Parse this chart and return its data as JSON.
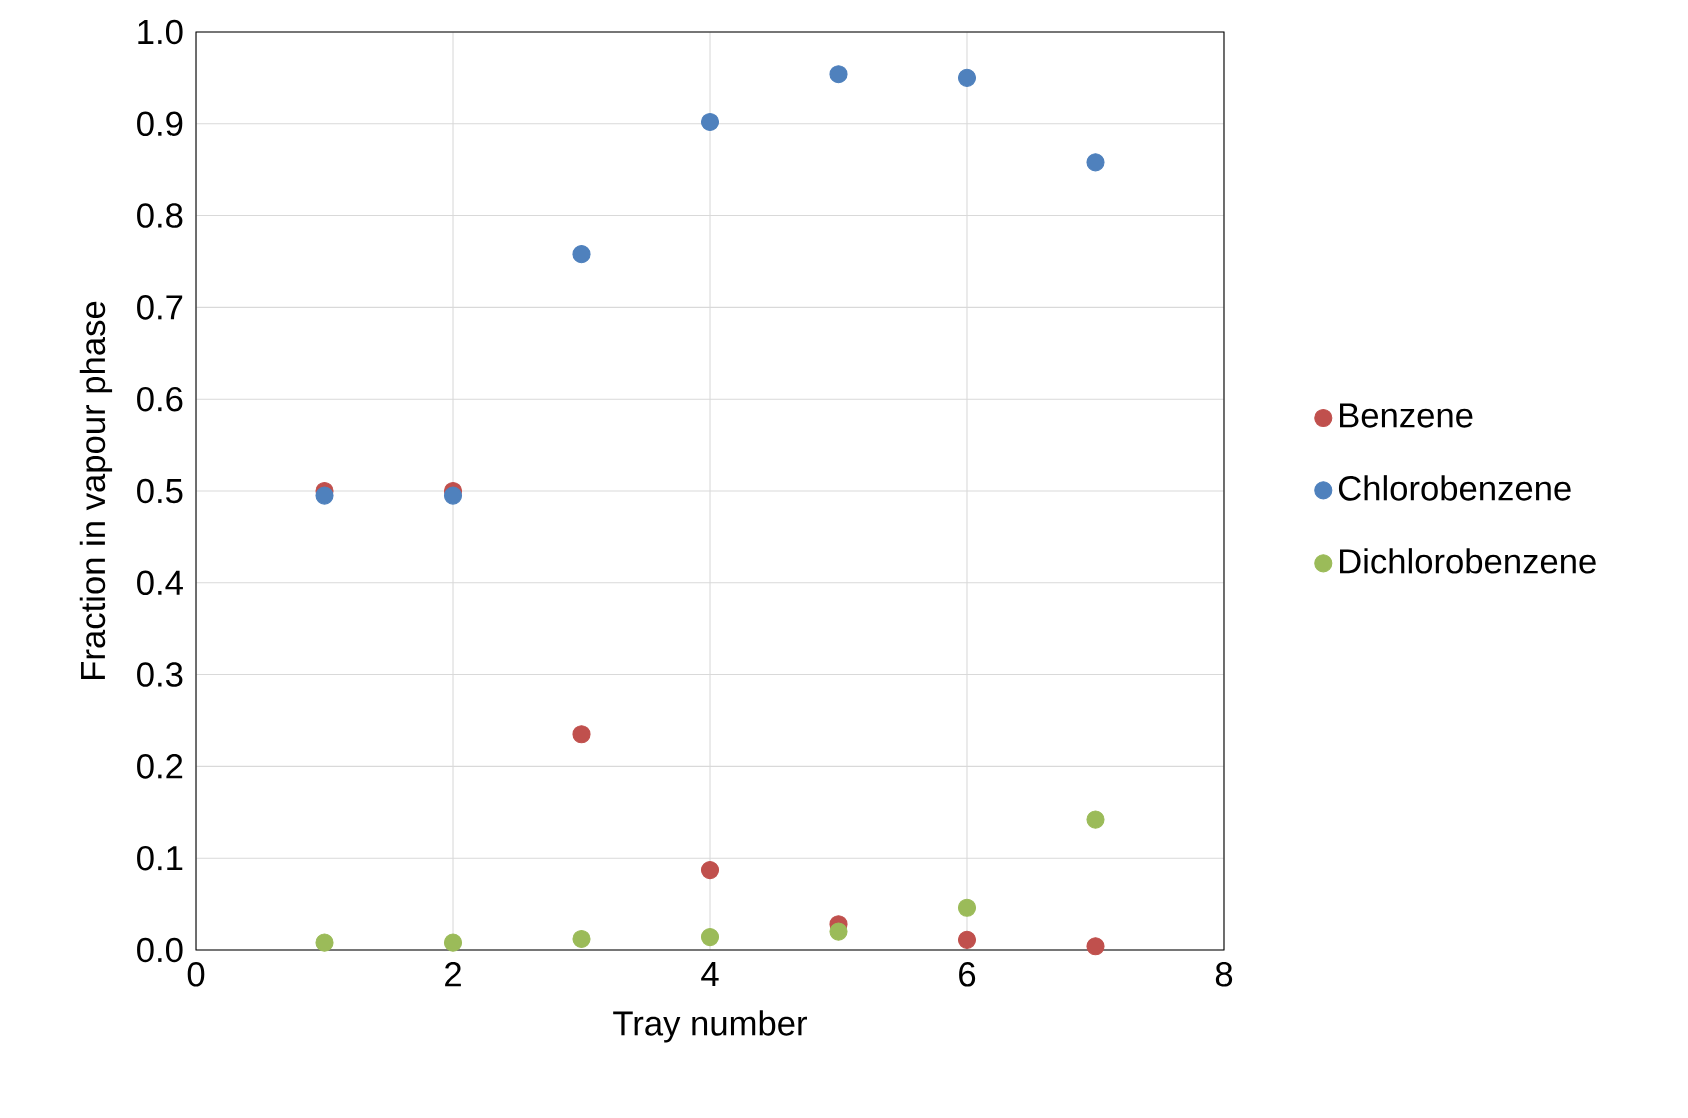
{
  "chart_data": {
    "type": "scatter",
    "xlabel": "Tray number",
    "ylabel": "Fraction in vapour phase",
    "x": [
      1,
      2,
      3,
      4,
      5,
      6,
      7
    ],
    "series": [
      {
        "name": "Benzene",
        "color": "#c0504d",
        "values": [
          0.5,
          0.5,
          0.235,
          0.087,
          0.028,
          0.011,
          0.004
        ]
      },
      {
        "name": "Chlorobenzene",
        "color": "#4f81bd",
        "values": [
          0.495,
          0.495,
          0.758,
          0.902,
          0.954,
          0.95,
          0.858
        ]
      },
      {
        "name": "Dichlorobenzene",
        "color": "#9bbb59",
        "values": [
          0.008,
          0.008,
          0.012,
          0.014,
          0.02,
          0.046,
          0.142
        ]
      }
    ],
    "xlim": [
      0,
      8
    ],
    "xticks": [
      0,
      2,
      4,
      6,
      8
    ],
    "ylim": [
      0,
      1
    ],
    "yticks": [
      {
        "value": 0,
        "label": "0.0"
      },
      {
        "value": 0.1,
        "label": "0.1"
      },
      {
        "value": 0.2,
        "label": "0.2"
      },
      {
        "value": 0.3,
        "label": "0.3"
      },
      {
        "value": 0.4,
        "label": "0.4"
      },
      {
        "value": 0.5,
        "label": "0.5"
      },
      {
        "value": 0.6,
        "label": "0.6"
      },
      {
        "value": 0.7,
        "label": "0.7"
      },
      {
        "value": 0.8,
        "label": "0.8"
      },
      {
        "value": 0.9,
        "label": "0.9"
      },
      {
        "value": 1,
        "label": "1.0"
      }
    ],
    "grid": true,
    "legend": "right",
    "marker": "circle"
  }
}
